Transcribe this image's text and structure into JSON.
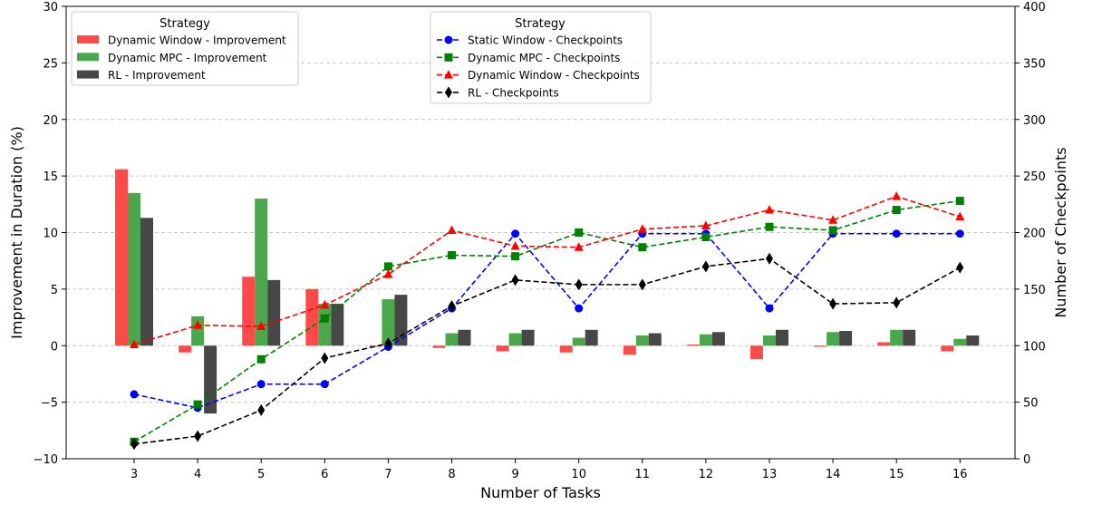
{
  "chart_data": {
    "type": "bar+line",
    "title": "",
    "xlabel": "Number of Tasks",
    "ylabel_left": "Improvement in Duration (%)",
    "ylabel_right": "Number of Checkpoints",
    "categories": [
      "3",
      "4",
      "5",
      "6",
      "7",
      "8",
      "9",
      "10",
      "11",
      "12",
      "13",
      "14",
      "15",
      "16"
    ],
    "x": [
      3,
      4,
      5,
      6,
      7,
      8,
      9,
      10,
      11,
      12,
      13,
      14,
      15,
      16
    ],
    "ylim_left": [
      -10,
      30
    ],
    "yticks_left": [
      "−10",
      "−5",
      "0",
      "5",
      "10",
      "15",
      "20",
      "25",
      "30"
    ],
    "ylim_right": [
      0,
      400
    ],
    "yticks_right": [
      "0",
      "50",
      "100",
      "150",
      "200",
      "250",
      "300",
      "350",
      "400"
    ],
    "grid": "horizontal dashed",
    "legend_bars_title": "Strategy",
    "legend_lines_title": "Strategy",
    "bar_series": [
      {
        "name": "Dynamic Window - Improvement",
        "color": "#ff4a4a",
        "values": [
          15.6,
          -0.6,
          6.1,
          5.0,
          -0.1,
          -0.2,
          -0.5,
          -0.6,
          -0.8,
          0.1,
          -1.2,
          -0.1,
          0.3,
          -0.5
        ]
      },
      {
        "name": "Dynamic MPC - Improvement",
        "color": "#4ca64c",
        "values": [
          13.5,
          2.6,
          13.0,
          3.7,
          4.1,
          1.1,
          1.1,
          0.7,
          0.9,
          1.0,
          0.9,
          1.2,
          1.4,
          0.6
        ]
      },
      {
        "name": "RL - Improvement",
        "color": "#474747",
        "values": [
          11.3,
          -6.0,
          5.8,
          3.7,
          4.5,
          1.4,
          1.4,
          1.4,
          1.1,
          1.2,
          1.4,
          1.3,
          1.4,
          0.9
        ]
      }
    ],
    "line_series": [
      {
        "name": "Static Window - Checkpoints",
        "color": "#0000ff",
        "marker": "circle",
        "values": [
          57,
          45,
          66,
          66,
          99,
          133,
          199,
          133,
          199,
          199,
          133,
          199,
          199,
          199
        ]
      },
      {
        "name": "Dynamic MPC - Checkpoints",
        "color": "#008000",
        "marker": "square",
        "values": [
          15,
          48,
          88,
          124,
          170,
          180,
          179,
          200,
          187,
          196,
          205,
          202,
          220,
          228
        ]
      },
      {
        "name": "Dynamic Window - Checkpoints",
        "color": "#ff0000",
        "marker": "triangle",
        "values": [
          101,
          118,
          117,
          136,
          163,
          202,
          188,
          187,
          203,
          206,
          220,
          211,
          232,
          214
        ]
      },
      {
        "name": "RL - Checkpoints",
        "color": "#000000",
        "marker": "diamond",
        "values": [
          13,
          20,
          43,
          89,
          102,
          135,
          158,
          154,
          154,
          170,
          177,
          137,
          138,
          169
        ]
      }
    ]
  }
}
